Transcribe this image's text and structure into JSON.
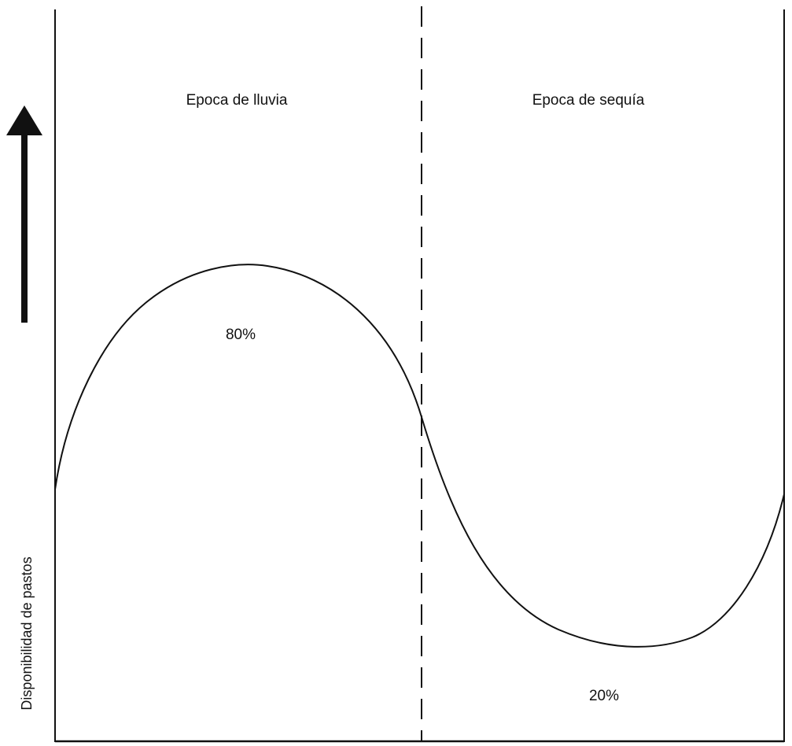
{
  "diagram": {
    "y_axis_label": "Disponibilidad de pastos",
    "regions": [
      {
        "name": "Epoca de lluvia",
        "value_label": "80%"
      },
      {
        "name": "Epoca de sequía",
        "value_label": "20%"
      }
    ],
    "colors": {
      "ink": "#111111",
      "background": "#ffffff"
    },
    "arrow_direction": "up",
    "divider_style": "dashed",
    "curve": "sinusoidal"
  }
}
